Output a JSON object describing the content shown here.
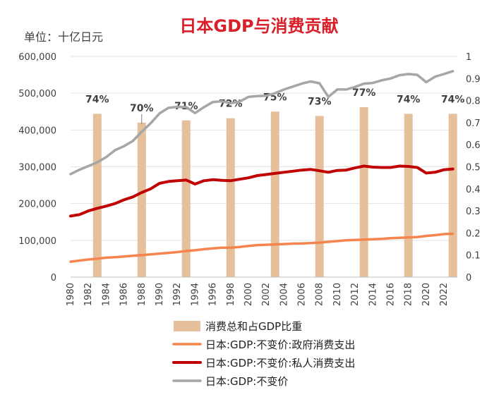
{
  "chart_data": {
    "type": "bar+line",
    "title": "日本GDP与消费贡献",
    "unit_label": "单位：十亿日元",
    "x_ticks": [
      "1980",
      "1982",
      "1984",
      "1986",
      "1988",
      "1990",
      "1992",
      "1994",
      "1996",
      "1998",
      "2000",
      "2002",
      "2004",
      "2006",
      "2008",
      "2010",
      "2012",
      "2014",
      "2016",
      "2018",
      "2020",
      "2022"
    ],
    "ylim_left": [
      0,
      600000
    ],
    "y_ticks_left": [
      "0",
      "100,000",
      "200,000",
      "300,000",
      "400,000",
      "500,000",
      "600,000"
    ],
    "ylim_right": [
      0,
      1
    ],
    "y_ticks_right": [
      "0",
      "0.1",
      "0.2",
      "0.3",
      "0.4",
      "0.5",
      "0.6",
      "0.7",
      "0.8",
      "0.9",
      "1"
    ],
    "grid": true,
    "legend_position": "bottom",
    "bars": {
      "name": "消费总和占GDP比重",
      "color": "#E6BF9B",
      "axis": "right",
      "points": [
        {
          "x": 1983,
          "value": 0.74,
          "label": "74%"
        },
        {
          "x": 1988,
          "value": 0.7,
          "label": "70%"
        },
        {
          "x": 1993,
          "value": 0.71,
          "label": "71%"
        },
        {
          "x": 1998,
          "value": 0.72,
          "label": "72%"
        },
        {
          "x": 2003,
          "value": 0.75,
          "label": "75%"
        },
        {
          "x": 2008,
          "value": 0.73,
          "label": "73%"
        },
        {
          "x": 2013,
          "value": 0.77,
          "label": "77%"
        },
        {
          "x": 2018,
          "value": 0.74,
          "label": "74%"
        },
        {
          "x": 2023,
          "value": 0.74,
          "label": "74%"
        }
      ]
    },
    "x": [
      1980,
      1981,
      1982,
      1983,
      1984,
      1985,
      1986,
      1987,
      1988,
      1989,
      1990,
      1991,
      1992,
      1993,
      1994,
      1995,
      1996,
      1997,
      1998,
      1999,
      2000,
      2001,
      2002,
      2003,
      2004,
      2005,
      2006,
      2007,
      2008,
      2009,
      2010,
      2011,
      2012,
      2013,
      2014,
      2015,
      2016,
      2017,
      2018,
      2019,
      2020,
      2021,
      2022,
      2023
    ],
    "series": [
      {
        "name": "日本:GDP:不变价:政府消费支出",
        "color": "#F5844F",
        "axis": "left",
        "values": [
          42000,
          45000,
          48000,
          50000,
          53000,
          54000,
          56000,
          58000,
          60000,
          62000,
          64000,
          66000,
          68000,
          71000,
          73000,
          76000,
          78000,
          80000,
          80000,
          82000,
          85000,
          87000,
          88000,
          89000,
          90000,
          91000,
          91500,
          92500,
          94000,
          96000,
          98000,
          100000,
          101000,
          102000,
          103000,
          104000,
          106000,
          107000,
          108000,
          109000,
          112000,
          114000,
          117000,
          118000
        ]
      },
      {
        "name": "日本:GDP:不变价:私人消费支出",
        "color": "#C00000",
        "axis": "left",
        "values": [
          166000,
          170000,
          180000,
          187000,
          193000,
          200000,
          210000,
          218000,
          230000,
          240000,
          255000,
          260000,
          262000,
          264000,
          253000,
          262000,
          265000,
          263000,
          262000,
          266000,
          270000,
          276000,
          279000,
          282000,
          285000,
          288000,
          291000,
          293000,
          289000,
          285000,
          290000,
          291000,
          297000,
          302000,
          299000,
          298000,
          298000,
          302000,
          301000,
          298000,
          283000,
          285000,
          292000,
          294000
        ]
      },
      {
        "name": "日本:GDP:不变价",
        "color": "#A6A6A6",
        "axis": "left",
        "values": [
          280000,
          292000,
          302000,
          312000,
          326000,
          345000,
          356000,
          370000,
          395000,
          418000,
          445000,
          460000,
          463000,
          462000,
          446000,
          462000,
          476000,
          478000,
          473000,
          477000,
          490000,
          492000,
          493000,
          500000,
          510000,
          518000,
          526000,
          532000,
          527000,
          490000,
          510000,
          510000,
          517000,
          526000,
          528000,
          535000,
          540000,
          549000,
          552000,
          550000,
          530000,
          545000,
          552000,
          560000
        ]
      }
    ]
  }
}
